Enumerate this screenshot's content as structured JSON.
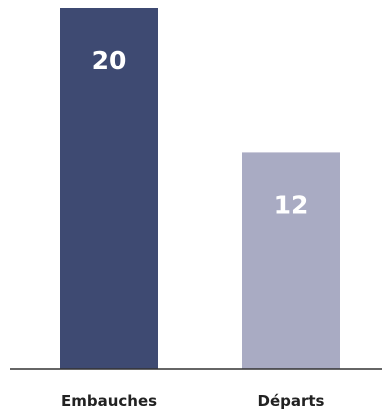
{
  "chart_data": {
    "type": "bar",
    "categories": [
      "Embauches",
      "Départs"
    ],
    "values": [
      20,
      12
    ],
    "colors": [
      "#3e4a72",
      "#a9abc3"
    ],
    "value_label_color": "#ffffff",
    "category_label_color": "#222222",
    "axis_color": "#333333",
    "ylim": [
      0,
      20
    ],
    "grid": false,
    "title": "",
    "xlabel": "",
    "ylabel": ""
  }
}
